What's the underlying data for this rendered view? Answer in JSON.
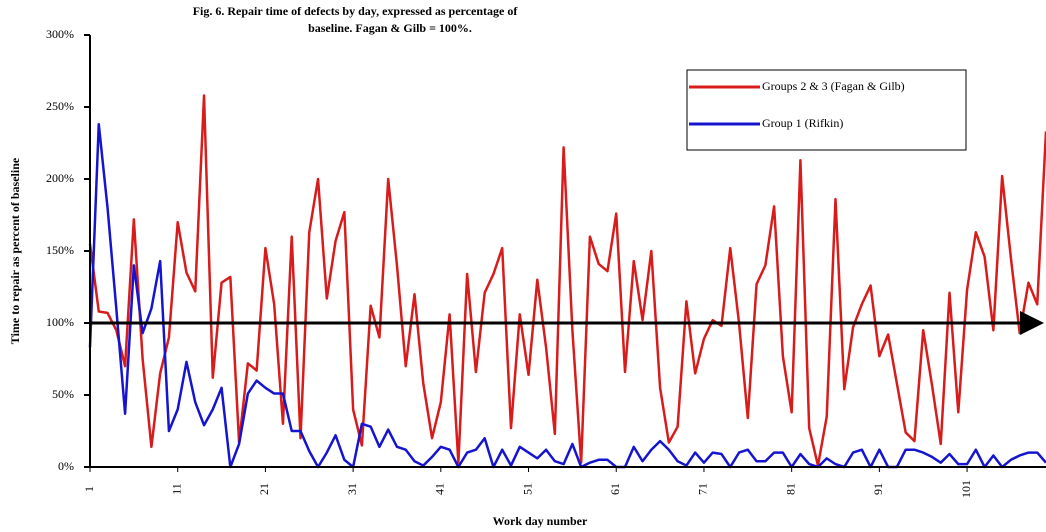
{
  "chart_data": {
    "type": "line",
    "title": [
      "Fig. 6. Repair time of defects by day, expressed as percentage of",
      "baseline. Fagan & Gilb = 100%."
    ],
    "x_label": "Work day number",
    "y_label": "Time to repair as percent of baseline",
    "x": [
      1,
      2,
      3,
      4,
      5,
      6,
      7,
      8,
      9,
      10,
      11,
      12,
      13,
      14,
      15,
      16,
      17,
      18,
      19,
      20,
      21,
      22,
      23,
      24,
      25,
      26,
      27,
      28,
      29,
      30,
      31,
      32,
      33,
      34,
      35,
      36,
      37,
      38,
      39,
      40,
      41,
      42,
      43,
      44,
      45,
      46,
      47,
      48,
      49,
      50,
      51,
      52,
      53,
      54,
      55,
      56,
      57,
      58,
      59,
      60,
      61,
      62,
      63,
      64,
      65,
      66,
      67,
      68,
      69,
      70,
      71,
      72,
      73,
      74,
      75,
      76,
      77,
      78,
      79,
      80,
      81,
      82,
      83,
      84,
      85,
      86,
      87,
      88,
      89,
      90,
      91,
      92,
      93,
      94,
      95,
      96,
      97,
      98,
      99,
      100,
      101,
      102,
      103,
      104,
      105,
      106,
      107,
      108,
      109,
      110
    ],
    "series": [
      {
        "name": "Groups 2 & 3 (Fagan & Gilb)",
        "color": "#d81c1c",
        "values": [
          155,
          108,
          107,
          95,
          70,
          172,
          75,
          14,
          65,
          90,
          170,
          135,
          122,
          258,
          62,
          128,
          132,
          17,
          72,
          67,
          152,
          113,
          30,
          160,
          20,
          163,
          200,
          117,
          157,
          177,
          40,
          15,
          112,
          90,
          200,
          140,
          70,
          120,
          58,
          20,
          45,
          106,
          3,
          134,
          66,
          121,
          134,
          152,
          27,
          106,
          64,
          130,
          83,
          23,
          222,
          95,
          3,
          160,
          141,
          136,
          176,
          66,
          143,
          102,
          150,
          55,
          17,
          28,
          115,
          65,
          89,
          102,
          98,
          152,
          100,
          34,
          127,
          140,
          181,
          77,
          38,
          213,
          27,
          1,
          35,
          186,
          54,
          97,
          113,
          126,
          77,
          92,
          58,
          24,
          18,
          95,
          57,
          16,
          121,
          38,
          123,
          163,
          146,
          95,
          202,
          145,
          93,
          128,
          113,
          233
        ]
      },
      {
        "name": "Group 1 (Rifkin)",
        "color": "#1515d0",
        "values": [
          83,
          238,
          180,
          110,
          37,
          140,
          93,
          110,
          143,
          25,
          40,
          73,
          45,
          29,
          40,
          55,
          0,
          16,
          51,
          60,
          55,
          51,
          51,
          25,
          25,
          11,
          0,
          10,
          22,
          5,
          0,
          30,
          28,
          14,
          26,
          14,
          12,
          4,
          1,
          7,
          14,
          12,
          0,
          10,
          12,
          20,
          0,
          12,
          1,
          14,
          10,
          6,
          12,
          4,
          2,
          16,
          0,
          3,
          5,
          5,
          0,
          0,
          14,
          4,
          12,
          18,
          12,
          4,
          1,
          10,
          3,
          10,
          9,
          0,
          10,
          12,
          4,
          4,
          10,
          10,
          0,
          9,
          2,
          0,
          6,
          2,
          0,
          10,
          12,
          0,
          12,
          0,
          0,
          12,
          12,
          10,
          7,
          3,
          9,
          2,
          2,
          12,
          0,
          8,
          0,
          5,
          8,
          10,
          10,
          3
        ]
      }
    ],
    "baseline": 100,
    "xlim": [
      1,
      110
    ],
    "xticks": [
      1,
      11,
      21,
      31,
      41,
      51,
      61,
      71,
      81,
      91,
      101
    ],
    "ylim": [
      0,
      300
    ],
    "yticks": [
      {
        "value": 0,
        "label": "0%"
      },
      {
        "value": 50,
        "label": "50%"
      },
      {
        "value": 100,
        "label": "100%"
      },
      {
        "value": 150,
        "label": "150%"
      },
      {
        "value": 200,
        "label": "200%"
      },
      {
        "value": 250,
        "label": "250%"
      },
      {
        "value": 300,
        "label": "300%"
      }
    ],
    "legend": "upper right"
  }
}
